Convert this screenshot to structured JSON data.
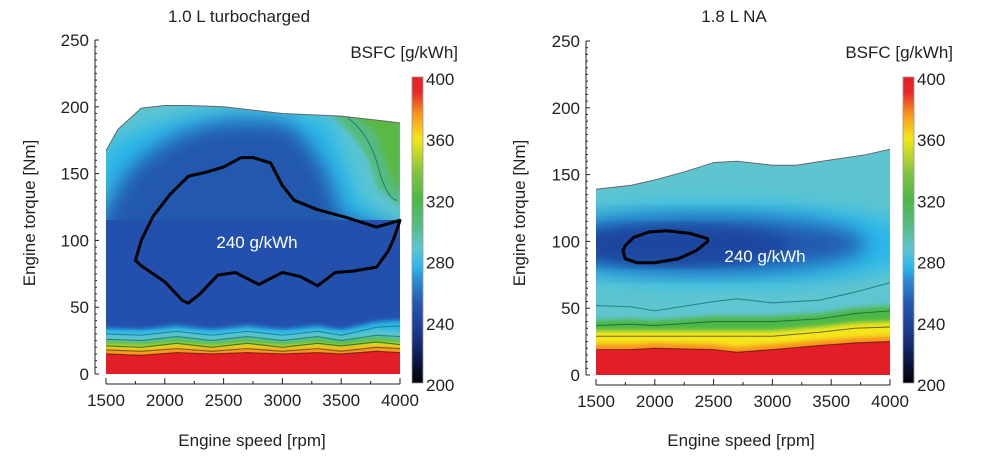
{
  "chart_data": [
    {
      "type": "heatmap",
      "subtype": "contour",
      "title": "1.0 L turbocharged",
      "xlabel": "Engine speed [rpm]",
      "ylabel": "Engine torque [Nm]",
      "xlim": [
        1500,
        4000
      ],
      "ylim": [
        0,
        250
      ],
      "xticks": [
        1500,
        2000,
        2500,
        3000,
        3500,
        4000
      ],
      "yticks": [
        0,
        50,
        100,
        150,
        200,
        250
      ],
      "grid": false,
      "colorbar": {
        "label": "BSFC [g/kWh]",
        "range": [
          200,
          400
        ],
        "ticks": [
          200,
          240,
          280,
          320,
          360,
          400
        ]
      },
      "annotation": "240 g/kWh",
      "full_load_curve": {
        "rpm": [
          1500,
          1600,
          1700,
          1800,
          2000,
          2200,
          2500,
          3000,
          3500,
          4000
        ],
        "torque": [
          167,
          183,
          191,
          199,
          201,
          201,
          200,
          195,
          193,
          188
        ]
      },
      "contour_240": {
        "rpm": [
          1750,
          1800,
          1900,
          2050,
          2200,
          2350,
          2500,
          2650,
          2750,
          2900,
          3000,
          3100,
          3300,
          3550,
          3800,
          4000,
          3950,
          3900,
          3800,
          3600,
          3450,
          3300,
          3150,
          3000,
          2800,
          2600,
          2450,
          2300,
          2200,
          2150,
          2000,
          1800,
          1750
        ],
        "torque": [
          85,
          100,
          118,
          135,
          148,
          151,
          155,
          162,
          162,
          158,
          141,
          130,
          123,
          117,
          110,
          115,
          102,
          92,
          80,
          77,
          76,
          66,
          73,
          76,
          67,
          76,
          74,
          60,
          53,
          55,
          69,
          81,
          85
        ]
      },
      "band_levels": [
        {
          "bsfc": 260,
          "torque_at_rpm": [
            30,
            29,
            32,
            29,
            32,
            29,
            32,
            29,
            35,
            36
          ]
        },
        {
          "bsfc": 280,
          "torque_at_rpm": [
            26,
            25,
            28,
            25,
            28,
            25,
            28,
            25,
            29,
            28
          ]
        },
        {
          "bsfc": 320,
          "torque_at_rpm": [
            21,
            20,
            23,
            20,
            23,
            20,
            23,
            21,
            24,
            22
          ]
        },
        {
          "bsfc": 360,
          "torque_at_rpm": [
            18,
            17,
            19,
            17,
            19,
            17,
            19,
            17,
            20,
            19
          ]
        },
        {
          "bsfc": 400,
          "torque_at_rpm": [
            15,
            14,
            16,
            15,
            16,
            15,
            16,
            15,
            17,
            16
          ]
        }
      ],
      "band_rpm": [
        1500,
        1800,
        2100,
        2400,
        2700,
        3000,
        3300,
        3500,
        3800,
        4000
      ],
      "high_bsfc_corner": {
        "rpm_range": [
          3500,
          4000
        ],
        "torque_range": [
          130,
          190
        ],
        "bsfc": 300
      }
    },
    {
      "type": "heatmap",
      "subtype": "contour",
      "title": "1.8 L NA",
      "xlabel": "Engine speed [rpm]",
      "ylabel": "Engine torque [Nm]",
      "xlim": [
        1500,
        4000
      ],
      "ylim": [
        0,
        250
      ],
      "xticks": [
        1500,
        2000,
        2500,
        3000,
        3500,
        4000
      ],
      "yticks": [
        0,
        50,
        100,
        150,
        200,
        250
      ],
      "grid": false,
      "colorbar": {
        "label": "BSFC [g/kWh]",
        "range": [
          200,
          400
        ],
        "ticks": [
          200,
          240,
          280,
          320,
          360,
          400
        ]
      },
      "annotation": "240 g/kWh",
      "full_load_curve": {
        "rpm": [
          1500,
          1800,
          2000,
          2250,
          2500,
          2700,
          3000,
          3200,
          3500,
          3800,
          4000
        ],
        "torque": [
          139,
          142,
          146,
          152,
          159,
          160,
          157,
          157,
          161,
          165,
          169
        ]
      },
      "contour_240": {
        "rpm": [
          1750,
          1820,
          1950,
          2100,
          2300,
          2450,
          2450,
          2350,
          2200,
          2000,
          1850,
          1750,
          1730,
          1750
        ],
        "torque": [
          97,
          103,
          107,
          108,
          106,
          102,
          100,
          93,
          87,
          84,
          84,
          87,
          93,
          97
        ]
      },
      "band_levels": [
        {
          "bsfc": 280,
          "torque_at_rpm": [
            52,
            51,
            48,
            55,
            57,
            54,
            56,
            62,
            69
          ]
        },
        {
          "bsfc": 300,
          "torque_at_rpm": [
            37,
            38,
            37,
            40,
            40,
            40,
            42,
            46,
            48
          ]
        },
        {
          "bsfc": 360,
          "torque_at_rpm": [
            29,
            29,
            29,
            29,
            29,
            29,
            32,
            35,
            36
          ]
        },
        {
          "bsfc": 400,
          "torque_at_rpm": [
            19,
            19,
            20,
            19,
            17,
            19,
            22,
            24,
            25
          ]
        }
      ],
      "band_rpm": [
        1500,
        1800,
        2000,
        2500,
        2700,
        3000,
        3400,
        3700,
        4000
      ]
    }
  ]
}
